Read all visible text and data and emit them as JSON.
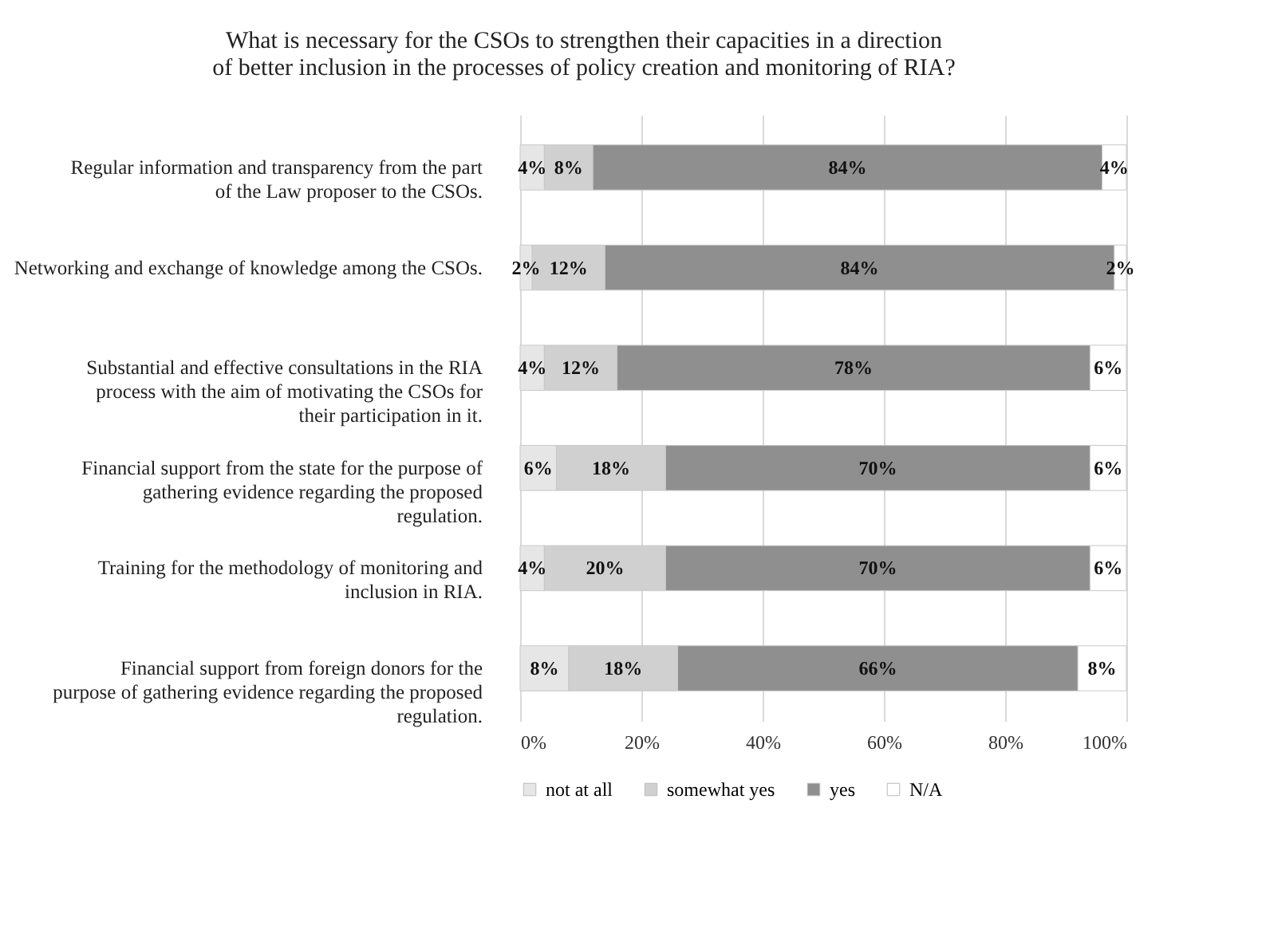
{
  "chart_data": {
    "type": "bar",
    "orientation": "horizontal",
    "stacked": true,
    "title": "What is necessary for the CSOs to strengthen their capacities in a direction of better inclusion in the processes of policy creation and monitoring of RIA?",
    "categories": [
      "Regular information and transparency from the part of the Law proposer to the CSOs.",
      "Networking and exchange of knowledge among the CSOs.",
      "Substantial and effective consultations in the RIA process with the aim of motivating the CSOs for their participation in it.",
      "Financial support from the state for the purpose of gathering evidence regarding the proposed regulation.",
      "Training for the methodology of monitoring and inclusion in RIA.",
      "Financial support from foreign donors for the purpose of gathering evidence regarding the proposed regulation."
    ],
    "series": [
      {
        "name": "not at all",
        "color": "#e6e6e6",
        "values": [
          4,
          2,
          4,
          6,
          4,
          8
        ],
        "value_labels": [
          "4%",
          "2%",
          "4%",
          "6%",
          "4%",
          "8%"
        ]
      },
      {
        "name": "somewhat yes",
        "color": "#d0d0d0",
        "values": [
          8,
          12,
          12,
          18,
          20,
          18
        ],
        "value_labels": [
          "8%",
          "12%",
          "12%",
          "18%",
          "20%",
          "18%"
        ]
      },
      {
        "name": "yes",
        "color": "#8f8f8f",
        "values": [
          84,
          84,
          78,
          70,
          70,
          66
        ],
        "value_labels": [
          "84%",
          "84%",
          "78%",
          "70%",
          "70%",
          "66%"
        ]
      },
      {
        "name": "N/A",
        "color": "#ffffff",
        "values": [
          4,
          2,
          6,
          6,
          6,
          8
        ],
        "value_labels": [
          "4%",
          "2%",
          "6%",
          "6%",
          "6%",
          "8%"
        ]
      }
    ],
    "xlim": [
      0,
      100
    ],
    "xticks": [
      {
        "value": 0,
        "label": "0%"
      },
      {
        "value": 20,
        "label": "20%"
      },
      {
        "value": 40,
        "label": "40%"
      },
      {
        "value": 60,
        "label": "60%"
      },
      {
        "value": 80,
        "label": "80%"
      },
      {
        "value": 100,
        "label": "100%"
      }
    ],
    "grid": "x",
    "legend": "bottom"
  }
}
